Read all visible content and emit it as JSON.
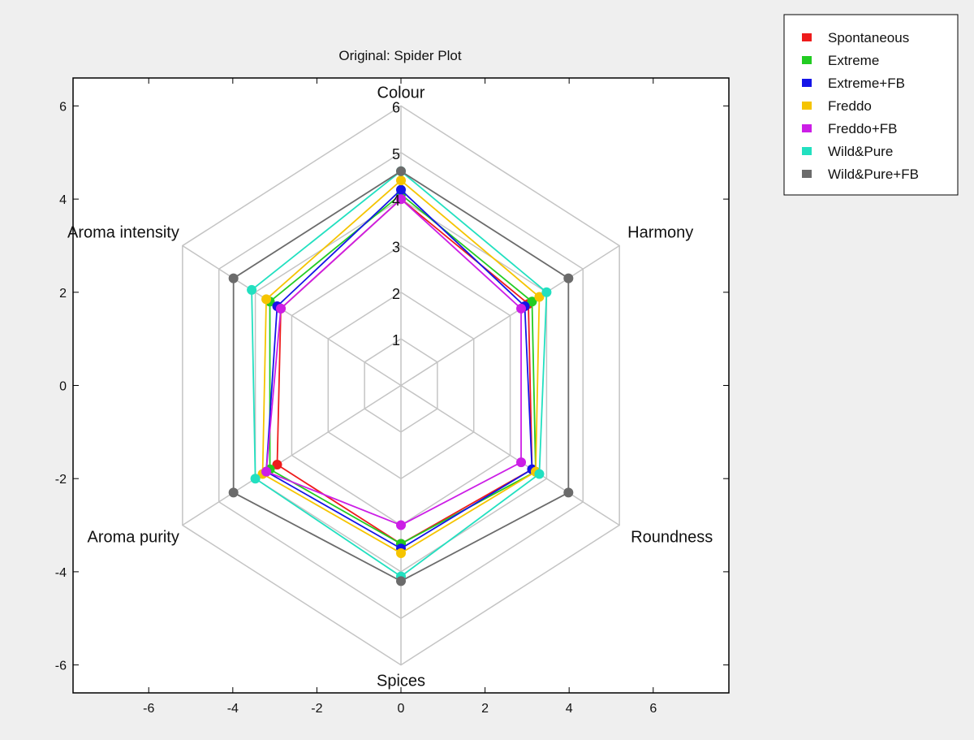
{
  "chart_data": {
    "type": "radar",
    "title": "Original: Spider Plot",
    "axes": [
      "Colour",
      "Harmony",
      "Roundness",
      "Spices",
      "Aroma purity",
      "Aroma intensity"
    ],
    "radial_ticks": [
      1,
      2,
      3,
      4,
      5,
      6
    ],
    "rmax": 6,
    "xlim": [
      -7.8,
      7.8
    ],
    "ylim": [
      -6.6,
      6.6
    ],
    "xticks": [
      -6,
      -4,
      -2,
      0,
      2,
      4,
      6
    ],
    "yticks": [
      -6,
      -4,
      -2,
      0,
      2,
      4,
      6
    ],
    "grid": true,
    "legend_position": "outside-top-right",
    "series": [
      {
        "name": "Spontaneous",
        "color": "#ee1c1c",
        "values": [
          4.0,
          3.5,
          3.6,
          3.4,
          3.4,
          3.3
        ]
      },
      {
        "name": "Extreme",
        "color": "#22cc22",
        "values": [
          4.1,
          3.6,
          3.7,
          3.4,
          3.6,
          3.6
        ]
      },
      {
        "name": "Extreme+FB",
        "color": "#1414e8",
        "values": [
          4.2,
          3.4,
          3.6,
          3.5,
          3.7,
          3.4
        ]
      },
      {
        "name": "Freddo",
        "color": "#f5c400",
        "values": [
          4.4,
          3.8,
          3.7,
          3.6,
          3.8,
          3.7
        ]
      },
      {
        "name": "Freddo+FB",
        "color": "#cc1ee6",
        "values": [
          4.0,
          3.3,
          3.3,
          3.0,
          3.7,
          3.3
        ]
      },
      {
        "name": "Wild&Pure",
        "color": "#22e0c0",
        "values": [
          4.6,
          4.0,
          3.8,
          4.1,
          4.0,
          4.1
        ]
      },
      {
        "name": "Wild&Pure+FB",
        "color": "#6b6b6b",
        "values": [
          4.6,
          4.6,
          4.6,
          4.2,
          4.6,
          4.6
        ]
      }
    ]
  }
}
